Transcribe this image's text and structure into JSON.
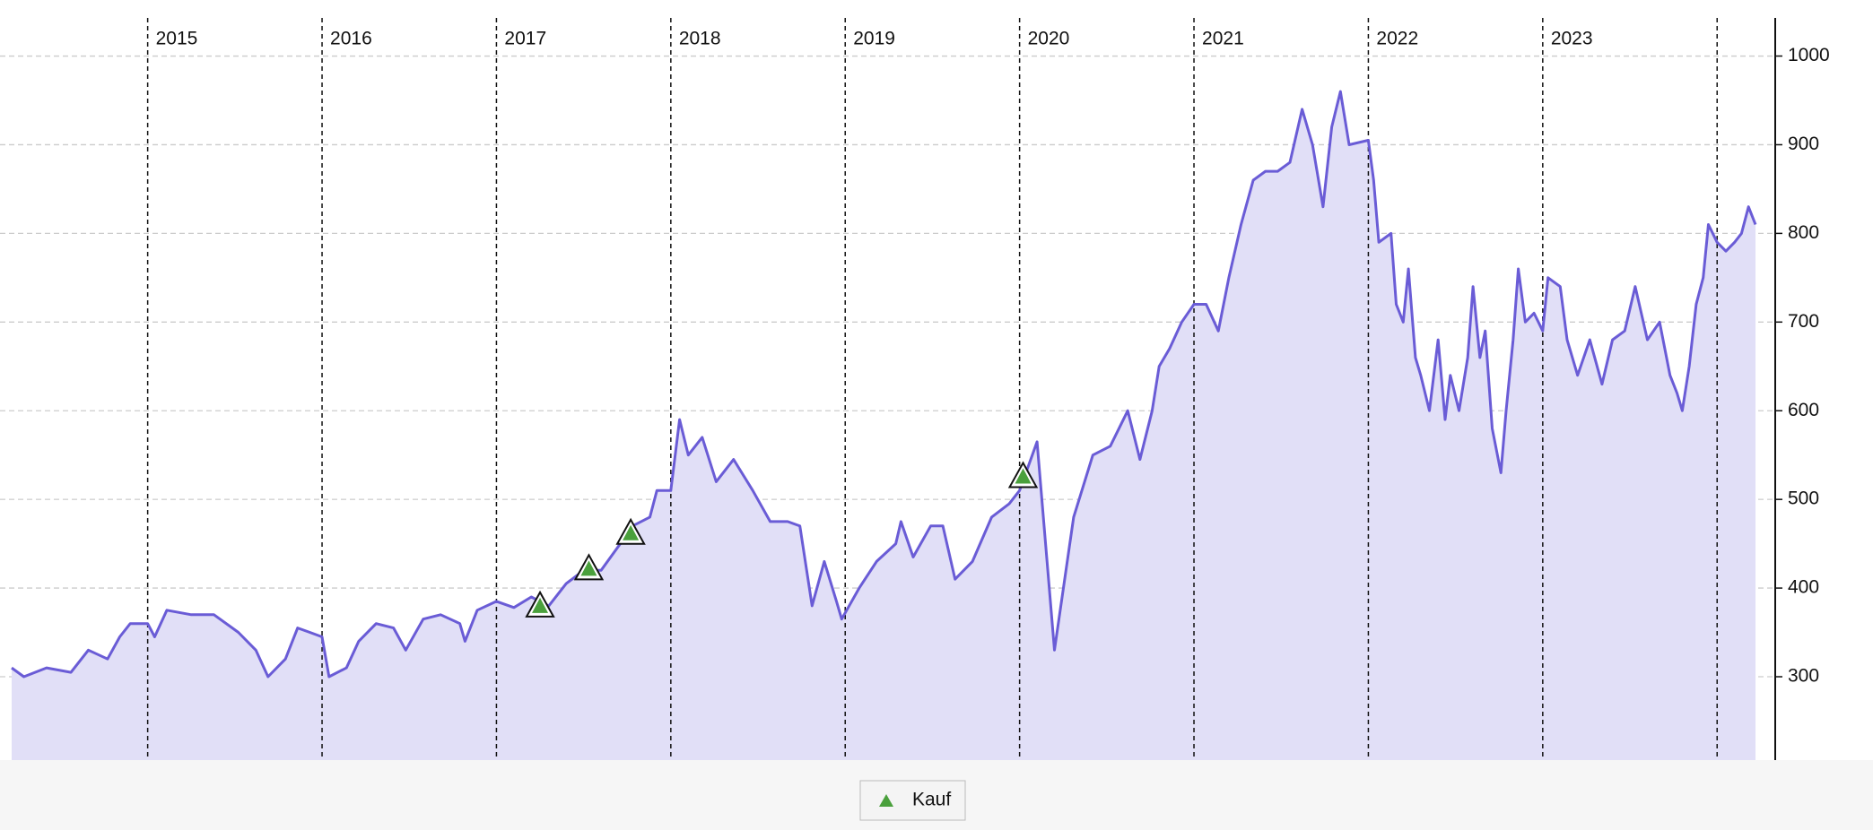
{
  "chart_data": {
    "type": "line",
    "x": [
      2014.22,
      2014.29,
      2014.42,
      2014.56,
      2014.66,
      2014.77,
      2014.84,
      2014.9,
      2015.0,
      2015.04,
      2015.11,
      2015.25,
      2015.38,
      2015.52,
      2015.62,
      2015.69,
      2015.79,
      2015.86,
      2015.93,
      2016.0,
      2016.04,
      2016.14,
      2016.21,
      2016.31,
      2016.41,
      2016.48,
      2016.58,
      2016.68,
      2016.79,
      2016.82,
      2016.89,
      2017.0,
      2017.1,
      2017.2,
      2017.3,
      2017.4,
      2017.5,
      2017.6,
      2017.71,
      2017.78,
      2017.88,
      2017.92,
      2018.0,
      2018.05,
      2018.1,
      2018.18,
      2018.26,
      2018.36,
      2018.47,
      2018.57,
      2018.67,
      2018.74,
      2018.81,
      2018.88,
      2018.95,
      2018.98,
      2019.08,
      2019.18,
      2019.29,
      2019.32,
      2019.39,
      2019.49,
      2019.56,
      2019.63,
      2019.73,
      2019.84,
      2019.94,
      2020.0,
      2020.1,
      2020.2,
      2020.31,
      2020.42,
      2020.52,
      2020.62,
      2020.69,
      2020.76,
      2020.8,
      2020.86,
      2020.93,
      2021.0,
      2021.07,
      2021.14,
      2021.2,
      2021.27,
      2021.34,
      2021.41,
      2021.48,
      2021.55,
      2021.62,
      2021.68,
      2021.74,
      2021.79,
      2021.84,
      2021.89,
      2022.0,
      2022.03,
      2022.06,
      2022.13,
      2022.16,
      2022.2,
      2022.23,
      2022.27,
      2022.3,
      2022.35,
      2022.4,
      2022.44,
      2022.47,
      2022.52,
      2022.57,
      2022.6,
      2022.64,
      2022.67,
      2022.71,
      2022.76,
      2022.79,
      2022.83,
      2022.86,
      2022.9,
      2022.95,
      2023.0,
      2023.03,
      2023.1,
      2023.14,
      2023.2,
      2023.27,
      2023.34,
      2023.4,
      2023.47,
      2023.53,
      2023.6,
      2023.67,
      2023.73,
      2023.77,
      2023.8,
      2023.84,
      2023.88,
      2023.92,
      2023.95,
      2024.0,
      2024.05,
      2024.1,
      2024.14,
      2024.18,
      2024.22
    ],
    "values": [
      310,
      300,
      310,
      305,
      330,
      320,
      345,
      360,
      360,
      345,
      375,
      370,
      370,
      350,
      330,
      300,
      320,
      355,
      350,
      345,
      300,
      310,
      340,
      360,
      355,
      330,
      365,
      370,
      360,
      340,
      375,
      385,
      378,
      390,
      380,
      405,
      420,
      420,
      450,
      470,
      480,
      510,
      510,
      590,
      550,
      570,
      520,
      545,
      510,
      475,
      475,
      470,
      380,
      430,
      385,
      365,
      400,
      430,
      450,
      475,
      435,
      470,
      470,
      410,
      430,
      480,
      495,
      510,
      565,
      330,
      480,
      550,
      560,
      600,
      545,
      600,
      650,
      670,
      700,
      720,
      720,
      690,
      750,
      810,
      860,
      870,
      870,
      880,
      940,
      900,
      830,
      920,
      960,
      900,
      905,
      860,
      790,
      800,
      720,
      700,
      760,
      660,
      640,
      600,
      680,
      590,
      640,
      600,
      660,
      740,
      660,
      690,
      580,
      530,
      600,
      680,
      760,
      700,
      710,
      690,
      750,
      740,
      680,
      640,
      680,
      630,
      680,
      690,
      740,
      680,
      700,
      640,
      620,
      600,
      650,
      720,
      750,
      810,
      790,
      780,
      790,
      800,
      830,
      810
    ],
    "color": "#6a5cd6",
    "fill": "#e1dff7",
    "markers": {
      "name": "Kauf",
      "color": "#4aa03c",
      "x": [
        2017.25,
        2017.53,
        2017.77,
        2020.02
      ],
      "values": [
        380,
        422,
        462,
        526
      ]
    },
    "xlim": [
      2014.22,
      2024.22
    ],
    "xticks": [
      2015,
      2016,
      2017,
      2018,
      2019,
      2020,
      2021,
      2022,
      2023,
      {
        "value": 2024,
        "label": null
      }
    ],
    "ylim": [
      206,
      1043
    ],
    "yticks": [
      300,
      400,
      500,
      600,
      700,
      800,
      900,
      1000
    ],
    "grid": true
  }
}
